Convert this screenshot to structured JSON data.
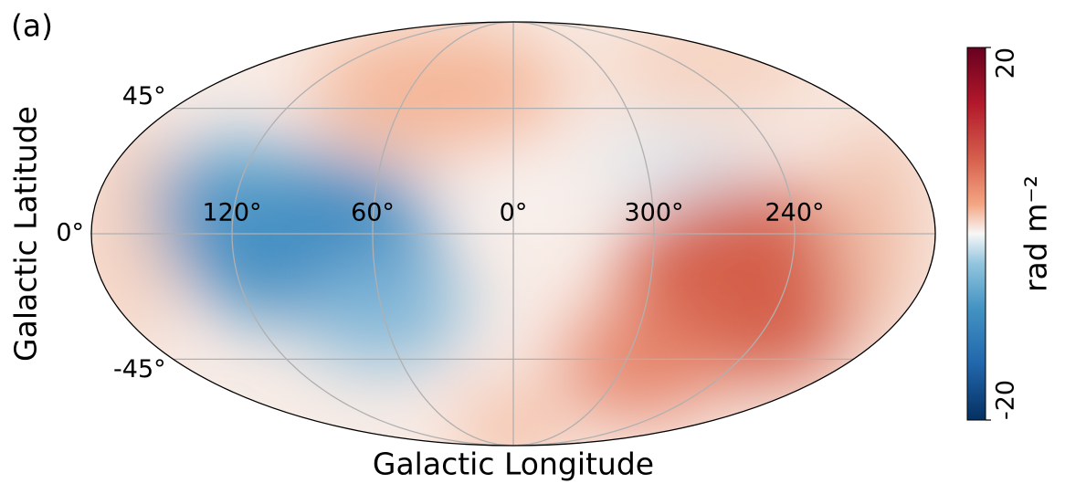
{
  "panel_label": "(a)",
  "chart_data": {
    "type": "mollweide",
    "xlabel": "Galactic Longitude",
    "ylabel": "Galactic Latitude",
    "xticks": [
      {
        "value": 120,
        "label": "120°"
      },
      {
        "value": 60,
        "label": "60°"
      },
      {
        "value": 0,
        "label": "0°"
      },
      {
        "value": 300,
        "label": "300°"
      },
      {
        "value": 240,
        "label": "240°"
      }
    ],
    "yticks": [
      {
        "value": 45,
        "label": "45°"
      },
      {
        "value": 0,
        "label": "0°"
      },
      {
        "value": -45,
        "label": "-45°"
      }
    ],
    "grid": true,
    "colorbar": {
      "label": "rad m⁻²",
      "clim": [
        -20,
        20
      ],
      "ticks": [
        -20,
        20
      ],
      "colormap": "RdBu_r"
    }
  }
}
